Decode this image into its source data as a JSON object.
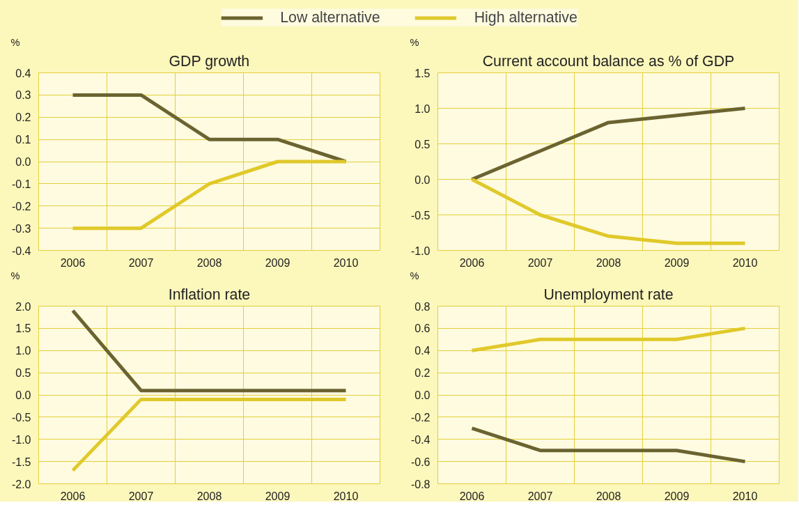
{
  "chart_data": [
    {
      "type": "line",
      "title": "GDP growth",
      "ylabel": "%",
      "categories": [
        "2006",
        "2007",
        "2008",
        "2009",
        "2010"
      ],
      "ylim": [
        -0.4,
        0.4
      ],
      "yticks": [
        {
          "value": -0.4,
          "label": "-0.4"
        },
        {
          "value": -0.3,
          "label": "-0.3"
        },
        {
          "value": -0.2,
          "label": "-0.2"
        },
        {
          "value": -0.1,
          "label": "-0.1"
        },
        {
          "value": 0,
          "label": "0.0"
        },
        {
          "value": 0.1,
          "label": "0.1"
        },
        {
          "value": 0.2,
          "label": "0.2"
        },
        {
          "value": 0.3,
          "label": "0.3"
        },
        {
          "value": 0.4,
          "label": "0.4"
        }
      ],
      "grid": true,
      "legend": "top",
      "marker": "none",
      "line_style": "solid",
      "series": [
        {
          "name": "Low alternative",
          "color": "#6b6330",
          "values": [
            0.3,
            0.3,
            0.1,
            0.1,
            0.0
          ]
        },
        {
          "name": "High alternative",
          "color": "#e0c92a",
          "values": [
            -0.3,
            -0.3,
            -0.1,
            0.0,
            0.0
          ]
        }
      ]
    },
    {
      "type": "line",
      "title": "Current account balance as % of GDP",
      "ylabel": "%",
      "categories": [
        "2006",
        "2007",
        "2008",
        "2009",
        "2010"
      ],
      "ylim": [
        -1.0,
        1.5
      ],
      "yticks": [
        {
          "value": -1.0,
          "label": "-1.0"
        },
        {
          "value": -0.5,
          "label": "-0.5"
        },
        {
          "value": 0,
          "label": "0.0"
        },
        {
          "value": 0.5,
          "label": "0.5"
        },
        {
          "value": 1.0,
          "label": "1.0"
        },
        {
          "value": 1.5,
          "label": "1.5"
        }
      ],
      "grid": true,
      "marker": "none",
      "line_style": "solid",
      "series": [
        {
          "color": "#6b6330",
          "values": [
            0.0,
            0.4,
            0.8,
            0.9,
            1.0
          ]
        },
        {
          "color": "#e0c92a",
          "values": [
            0.0,
            -0.5,
            -0.8,
            -0.9,
            -0.9
          ]
        }
      ]
    },
    {
      "type": "line",
      "title": "Inflation rate",
      "ylabel": "%",
      "categories": [
        "2006",
        "2007",
        "2008",
        "2009",
        "2010"
      ],
      "ylim": [
        -2.0,
        2.0
      ],
      "yticks": [
        {
          "value": -2.0,
          "label": "-2.0"
        },
        {
          "value": -1.5,
          "label": "-1.5"
        },
        {
          "value": -1.0,
          "label": "-1.0"
        },
        {
          "value": -0.5,
          "label": "-0.5"
        },
        {
          "value": 0,
          "label": "0.0"
        },
        {
          "value": 0.5,
          "label": "0.5"
        },
        {
          "value": 1.0,
          "label": "1.0"
        },
        {
          "value": 1.5,
          "label": "1.5"
        },
        {
          "value": 2.0,
          "label": "2.0"
        }
      ],
      "grid": true,
      "marker": "none",
      "line_style": "solid",
      "series": [
        {
          "color": "#6b6330",
          "values": [
            1.9,
            0.1,
            0.1,
            0.1,
            0.1
          ]
        },
        {
          "color": "#e0c92a",
          "values": [
            -1.7,
            -0.1,
            -0.1,
            -0.1,
            -0.1
          ]
        }
      ]
    },
    {
      "type": "line",
      "title": "Unemployment rate",
      "ylabel": "%",
      "categories": [
        "2006",
        "2007",
        "2008",
        "2009",
        "2010"
      ],
      "ylim": [
        -0.8,
        0.8
      ],
      "yticks": [
        {
          "value": -0.8,
          "label": "-0.8"
        },
        {
          "value": -0.6,
          "label": "-0.6"
        },
        {
          "value": -0.4,
          "label": "-0.4"
        },
        {
          "value": -0.2,
          "label": "-0.2"
        },
        {
          "value": 0,
          "label": "0.0"
        },
        {
          "value": 0.2,
          "label": "0.2"
        },
        {
          "value": 0.4,
          "label": "0.4"
        },
        {
          "value": 0.6,
          "label": "0.6"
        },
        {
          "value": 0.8,
          "label": "0.8"
        }
      ],
      "grid": true,
      "marker": "none",
      "line_style": "solid",
      "series": [
        {
          "color": "#6b6330",
          "values": [
            -0.3,
            -0.5,
            -0.5,
            -0.5,
            -0.6
          ]
        },
        {
          "color": "#e0c92a",
          "values": [
            0.4,
            0.5,
            0.5,
            0.5,
            0.6
          ]
        }
      ]
    }
  ]
}
